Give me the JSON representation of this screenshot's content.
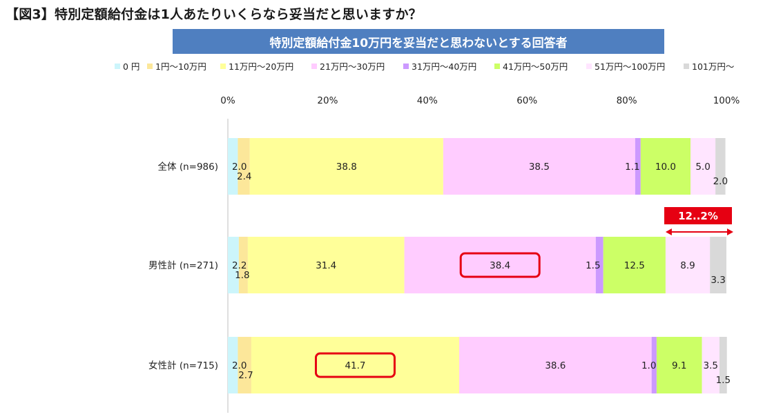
{
  "figure_title": "【図3】特別定額給付金は1人あたりいくらなら妥当だと思いますか？",
  "subtitle": "特別定額給付金10万円を妥当だと思わないとする回答者",
  "colors": {
    "banner": "#4f7fc0",
    "highlight": "#e60012",
    "series": [
      "#ccf5fb",
      "#fce79a",
      "#ffff99",
      "#ffccff",
      "#cc99ff",
      "#ccff66",
      "#ffe5ff",
      "#d9d9d9"
    ]
  },
  "annotation": {
    "label": "12..2%",
    "row": 1,
    "from_series": 6,
    "to_series": 7
  },
  "highlights": [
    {
      "row": 1,
      "series": 3
    },
    {
      "row": 2,
      "series": 2
    }
  ],
  "chart_data": {
    "type": "bar",
    "orientation": "horizontal",
    "stacked": true,
    "percent_axis": true,
    "categories": [
      "全体 (n=986)",
      "男性計 (n=271)",
      "女性計 (n=715)"
    ],
    "xlim": [
      0,
      100
    ],
    "xticks": [
      "0%",
      "20%",
      "40%",
      "60%",
      "80%",
      "100%"
    ],
    "legend_position": "top",
    "grid": false,
    "series": [
      {
        "name": "0 円",
        "values": [
          2.0,
          2.2,
          2.0
        ]
      },
      {
        "name": "1円～10万円",
        "values": [
          2.4,
          1.8,
          2.7
        ]
      },
      {
        "name": "11万円～20万円",
        "values": [
          38.8,
          31.4,
          41.7
        ]
      },
      {
        "name": "21万円～30万円",
        "values": [
          38.5,
          38.4,
          38.6
        ]
      },
      {
        "name": "31万円～40万円",
        "values": [
          1.1,
          1.5,
          1.0
        ]
      },
      {
        "name": "41万円～50万円",
        "values": [
          10.0,
          12.5,
          9.1
        ]
      },
      {
        "name": "51万円～100万円",
        "values": [
          5.0,
          8.9,
          3.5
        ]
      },
      {
        "name": "101万円～",
        "values": [
          2.0,
          3.3,
          1.5
        ]
      }
    ]
  }
}
